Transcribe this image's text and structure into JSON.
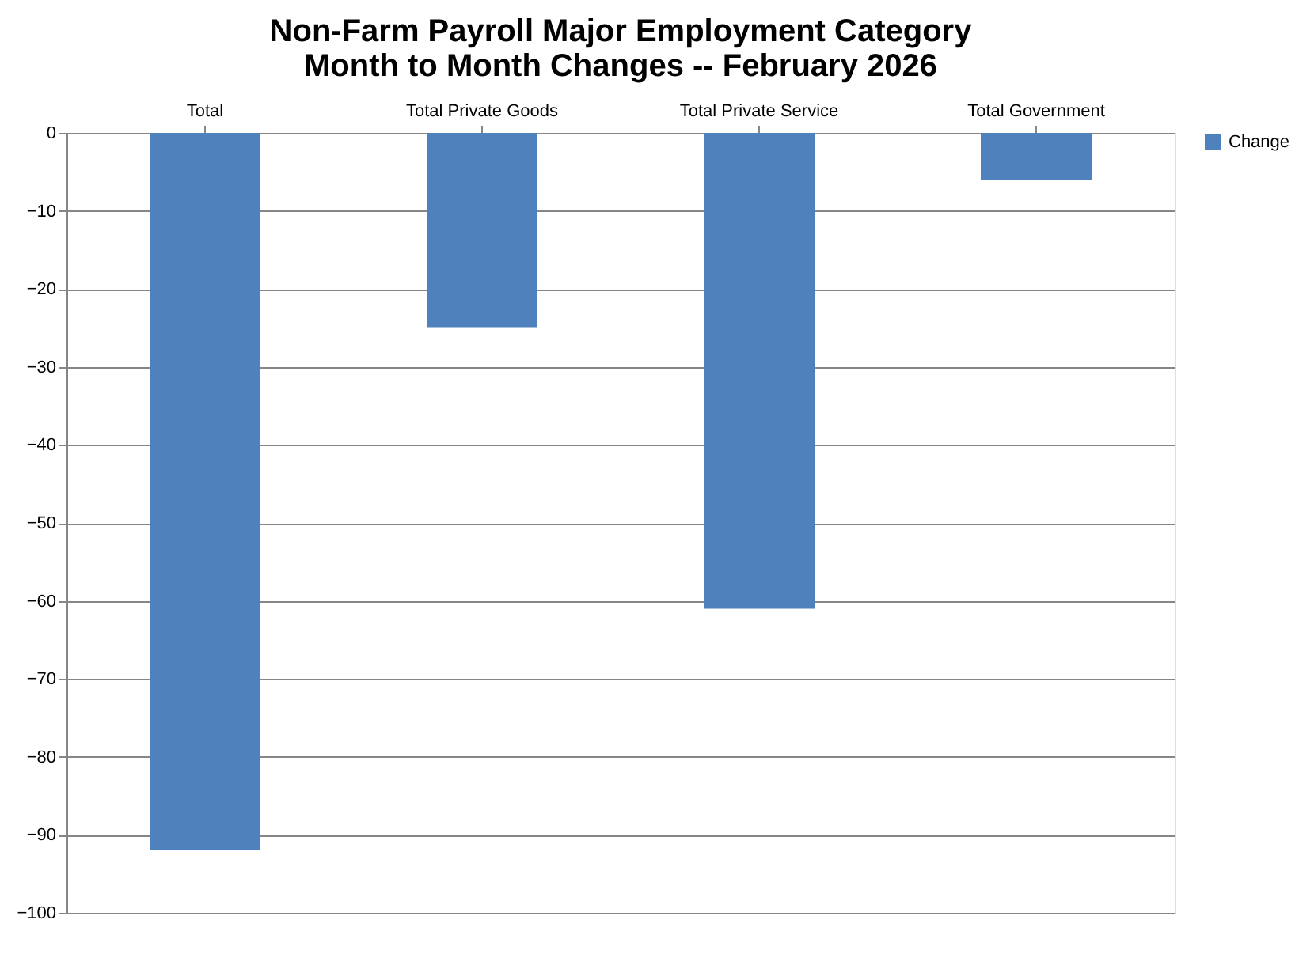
{
  "chart_data": {
    "type": "bar",
    "title": "Non-Farm Payroll Major Employment Category\nMonth to Month Changes -- February 2026",
    "categories": [
      "Total",
      "Total Private Goods",
      "Total Private Service",
      "Total Government"
    ],
    "series": [
      {
        "name": "Change",
        "color": "#4f81bd",
        "values": [
          -92,
          -25,
          -61,
          -6
        ]
      }
    ],
    "ylim": [
      -100,
      0
    ],
    "yticks": [
      -100,
      -90,
      -80,
      -70,
      -60,
      -50,
      -40,
      -30,
      -20,
      -10,
      0
    ],
    "grid": "y",
    "legend": "right"
  }
}
